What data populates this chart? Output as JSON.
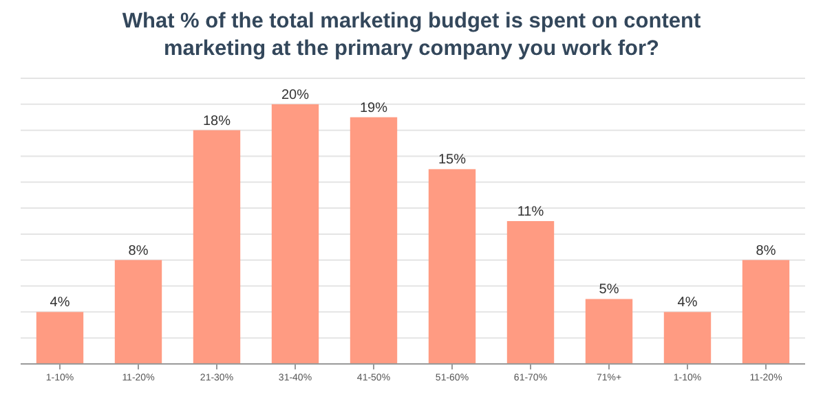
{
  "chart_data": {
    "type": "bar",
    "title": "What % of the total marketing budget is spent on content marketing at the primary company you work for?",
    "categories": [
      "1-10%",
      "11-20%",
      "21-30%",
      "31-40%",
      "41-50%",
      "51-60%",
      "61-70%",
      "71%+",
      "1-10%",
      "11-20%"
    ],
    "values": [
      4,
      8,
      18,
      20,
      19,
      15,
      11,
      5,
      4,
      8
    ],
    "value_labels": [
      "4%",
      "8%",
      "18%",
      "20%",
      "19%",
      "15%",
      "11%",
      "5%",
      "4%",
      "8%"
    ],
    "color": "#ff9b82",
    "ylim": [
      0,
      22
    ],
    "yticks": [
      {
        "value": 0,
        "label": null
      },
      {
        "value": 2,
        "label": null
      },
      {
        "value": 4,
        "label": null
      },
      {
        "value": 6,
        "label": null
      },
      {
        "value": 8,
        "label": null
      },
      {
        "value": 10,
        "label": null
      },
      {
        "value": 12,
        "label": null
      },
      {
        "value": 14,
        "label": null
      },
      {
        "value": 16,
        "label": null
      },
      {
        "value": 18,
        "label": null
      },
      {
        "value": 20,
        "label": null
      },
      {
        "value": 22,
        "label": null
      }
    ],
    "grid": "y"
  }
}
